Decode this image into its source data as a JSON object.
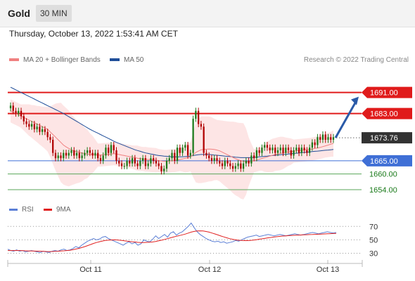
{
  "header": {
    "symbol": "Gold",
    "timeframe": "30 MIN"
  },
  "datetime": "Thursday, October 13, 2022 1:53:41 AM CET",
  "legend": {
    "ma20": {
      "label": "MA 20 + Bollinger Bands",
      "color": "#f08080"
    },
    "ma50": {
      "label": "MA 50",
      "color": "#1f4e99"
    }
  },
  "copyright": "Research © 2022 Trading Central",
  "rsi_legend": {
    "rsi": {
      "label": "RSI",
      "color": "#5b7fd6"
    },
    "ma9": {
      "label": "9MA",
      "color": "#e02020"
    }
  },
  "colors": {
    "up": "#1a7a1a",
    "down": "#b00000",
    "resistance": "#e01b1b",
    "support": "#3f6fd6",
    "support2": "#5aa65a",
    "current": "#333333",
    "band": "#fcdcdc"
  },
  "chart_data": {
    "type": "candlestick",
    "timeframe": "30 MIN",
    "ylim": [
      1650,
      1700
    ],
    "xticks": [
      "Oct 11",
      "Oct 12",
      "Oct 13"
    ],
    "levels": [
      {
        "label": "1691.00",
        "value": 1691.0,
        "kind": "resistance"
      },
      {
        "label": "1683.00",
        "value": 1683.0,
        "kind": "resistance"
      },
      {
        "label": "1673.76",
        "value": 1673.76,
        "kind": "current"
      },
      {
        "label": "1665.00",
        "value": 1665.0,
        "kind": "support"
      },
      {
        "label": "1660.00",
        "value": 1660.0,
        "kind": "support2"
      },
      {
        "label": "1654.00",
        "value": 1654.0,
        "kind": "support2"
      }
    ],
    "close": [
      1686,
      1684,
      1683,
      1684,
      1682,
      1680,
      1679,
      1678,
      1679,
      1677,
      1678,
      1676,
      1677,
      1676,
      1674,
      1673,
      1668,
      1666,
      1667,
      1666,
      1668,
      1667,
      1668,
      1669,
      1667,
      1668,
      1666,
      1667,
      1668,
      1669,
      1668,
      1667,
      1668,
      1666,
      1665,
      1667,
      1670,
      1668,
      1671,
      1669,
      1665,
      1664,
      1663,
      1663,
      1665,
      1664,
      1666,
      1664,
      1663,
      1665,
      1666,
      1663,
      1664,
      1666,
      1665,
      1664,
      1663,
      1661,
      1662,
      1665,
      1666,
      1668,
      1665,
      1670,
      1668,
      1670,
      1671,
      1667,
      1668,
      1681,
      1684,
      1679,
      1678,
      1668,
      1667,
      1666,
      1665,
      1666,
      1665,
      1664,
      1663,
      1665,
      1664,
      1663,
      1662,
      1663,
      1664,
      1662,
      1664,
      1665,
      1664,
      1667,
      1666,
      1669,
      1668,
      1670,
      1671,
      1670,
      1669,
      1670,
      1668,
      1669,
      1670,
      1668,
      1670,
      1669,
      1667,
      1669,
      1670,
      1668,
      1670,
      1669,
      1668,
      1670,
      1672,
      1671,
      1674,
      1673,
      1675,
      1673,
      1674,
      1673,
      1674
    ],
    "ma20": [
      1684,
      1683.5,
      1683,
      1682.5,
      1682,
      1681.5,
      1681,
      1680.5,
      1680,
      1679.5,
      1679,
      1678.5,
      1678,
      1677.5,
      1677,
      1676,
      1675,
      1674,
      1673,
      1672,
      1671,
      1670.3,
      1669.7,
      1669.2,
      1668.8,
      1668.5,
      1668.2,
      1668,
      1667.8,
      1667.6,
      1667.5,
      1667.4,
      1667.3,
      1667.2,
      1667.2,
      1667.3,
      1667.4,
      1667.5,
      1667.6,
      1667.7,
      1667.6,
      1667.4,
      1667.2,
      1667,
      1666.8,
      1666.6,
      1666.4,
      1666.2,
      1666,
      1665.8,
      1665.7,
      1665.6,
      1665.5,
      1665.4,
      1665.3,
      1665.2,
      1665.1,
      1664.9,
      1664.8,
      1664.8,
      1664.9,
      1665,
      1665.1,
      1665.3,
      1665.5,
      1665.7,
      1666,
      1666.2,
      1666.5,
      1667.3,
      1668.2,
      1668.7,
      1669.2,
      1669.3,
      1669.4,
      1669.5,
      1669.4,
      1669.3,
      1669.1,
      1668.8,
      1668.3,
      1667.8,
      1667.3,
      1666.8,
      1666.3,
      1665.8,
      1665.4,
      1665,
      1664.8,
      1664.7,
      1664.7,
      1664.8,
      1665,
      1665.3,
      1665.6,
      1665.9,
      1666.2,
      1666.5,
      1666.8,
      1667.1,
      1667.4,
      1667.6,
      1667.8,
      1668,
      1668.2,
      1668.4,
      1668.5,
      1668.7,
      1668.8,
      1668.9,
      1669,
      1669.1,
      1669.2,
      1669.3,
      1669.5,
      1669.7,
      1669.9,
      1670.1,
      1670.4,
      1670.7,
      1671,
      1671.3,
      1671.6
    ],
    "ma50": [
      1693,
      1692.5,
      1692,
      1691.5,
      1691,
      1690.5,
      1690,
      1689.5,
      1689,
      1688.5,
      1688,
      1687.5,
      1687,
      1686.5,
      1686,
      1685.5,
      1685,
      1684.5,
      1684,
      1683.5,
      1683,
      1682.4,
      1681.8,
      1681.2,
      1680.6,
      1680,
      1679.4,
      1678.8,
      1678.2,
      1677.6,
      1677,
      1676.5,
      1676,
      1675.5,
      1675,
      1674.5,
      1674,
      1673.5,
      1673,
      1672.5,
      1672,
      1671.6,
      1671.2,
      1670.8,
      1670.4,
      1670,
      1669.6,
      1669.2,
      1668.9,
      1668.6,
      1668.3,
      1668,
      1667.8,
      1667.6,
      1667.4,
      1667.2,
      1667,
      1666.9,
      1666.8,
      1666.7,
      1666.6,
      1666.5,
      1666.5,
      1666.5,
      1666.5,
      1666.5,
      1666.6,
      1666.7,
      1666.8,
      1667,
      1667.2,
      1667.3,
      1667.4,
      1667.4,
      1667.4,
      1667.4,
      1667.3,
      1667.2,
      1667.1,
      1667,
      1666.9,
      1666.8,
      1666.7,
      1666.6,
      1666.5,
      1666.4,
      1666.3,
      1666.2,
      1666.2,
      1666.2,
      1666.2,
      1666.2,
      1666.3,
      1666.4,
      1666.5,
      1666.6,
      1666.7,
      1666.8,
      1666.9,
      1667,
      1667.1,
      1667.2,
      1667.3,
      1667.4,
      1667.5,
      1667.6,
      1667.7,
      1667.8,
      1667.9,
      1668,
      1668.1,
      1668.2,
      1668.3,
      1668.4,
      1668.5,
      1668.6,
      1668.7,
      1668.8,
      1668.9,
      1669,
      1669.1,
      1669.2,
      1669.3
    ],
    "projection": {
      "from": 1673.76,
      "to": 1691.0
    },
    "rsi": {
      "levels": [
        70,
        50,
        30
      ],
      "ylim": [
        20,
        85
      ],
      "rsi": [
        36,
        34,
        33,
        35,
        33,
        34,
        32,
        33,
        34,
        33,
        32,
        31,
        33,
        32,
        31,
        33,
        34,
        33,
        35,
        36,
        34,
        35,
        37,
        40,
        38,
        42,
        45,
        48,
        50,
        52,
        50,
        51,
        54,
        55,
        52,
        50,
        48,
        46,
        44,
        42,
        45,
        47,
        44,
        46,
        42,
        44,
        50,
        48,
        47,
        51,
        56,
        52,
        55,
        58,
        54,
        60,
        62,
        57,
        60,
        62,
        66,
        70,
        75,
        68,
        62,
        58,
        55,
        52,
        50,
        48,
        47,
        48,
        46,
        47,
        45,
        46,
        47,
        49,
        48,
        50,
        52,
        54,
        55,
        56,
        57,
        55,
        56,
        57,
        58,
        57,
        56,
        57,
        58,
        57,
        56,
        57,
        58,
        59,
        58,
        57,
        58,
        59,
        60,
        61,
        60,
        59,
        60,
        61,
        62,
        61,
        60,
        61
      ],
      "ma9": [
        34,
        34,
        34,
        34,
        34,
        33.8,
        33.6,
        33.4,
        33.3,
        33.2,
        33.1,
        33,
        32.8,
        32.6,
        32.5,
        32.6,
        32.8,
        33,
        33.3,
        33.6,
        34,
        34.5,
        35.2,
        36.2,
        37.2,
        38.4,
        39.8,
        41.4,
        43,
        44.6,
        46,
        47.2,
        48.2,
        49,
        49.5,
        49.8,
        50,
        49.8,
        49.4,
        48.8,
        48.2,
        47.7,
        47.2,
        46.8,
        46.2,
        45.9,
        46,
        46.2,
        46.4,
        46.8,
        47.6,
        48.5,
        49.5,
        50.6,
        51.8,
        53,
        54.2,
        55.3,
        56.4,
        57.4,
        58.6,
        60,
        61.5,
        62.6,
        63.2,
        63.4,
        63.2,
        62.5,
        61.5,
        60.2,
        58.8,
        57.3,
        55.8,
        54.4,
        53,
        51.8,
        50.8,
        50,
        49.4,
        49,
        48.8,
        48.8,
        49.1,
        49.6,
        50.2,
        50.9,
        51.6,
        52.3,
        53,
        53.6,
        54.2,
        54.7,
        55.2,
        55.6,
        56,
        56.3,
        56.6,
        56.8,
        57,
        57.2,
        57.4,
        57.6,
        57.8,
        58,
        58.2,
        58.4,
        58.6,
        58.8,
        59,
        59.2,
        59.4,
        59.6
      ]
    }
  }
}
